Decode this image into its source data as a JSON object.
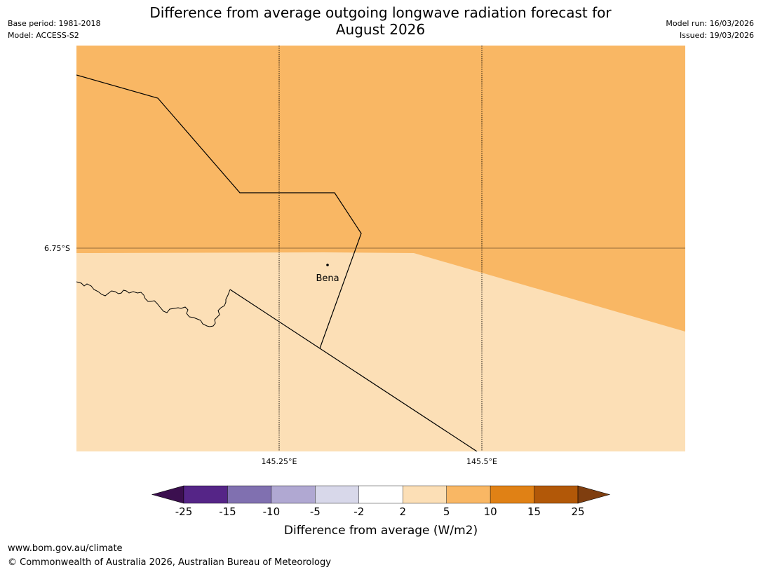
{
  "header": {
    "base_period": "Base period: 1981-2018",
    "model": "Model: ACCESS-S2",
    "model_run": "Model run: 16/03/2026",
    "issued": "Issued: 19/03/2026",
    "title_line1": "Difference from average outgoing longwave radiation forecast for",
    "title_line2": "August 2026"
  },
  "map": {
    "lat_label": "6.75°S",
    "lon_labels": [
      "145.25°E",
      "145.5°E"
    ],
    "place_name": "Bena",
    "fill_colors": {
      "upper": "#f9b764",
      "lower": "#fcdfb6"
    },
    "place_icon": "dot-marker"
  },
  "colorbar": {
    "tick_labels": [
      "-25",
      "-15",
      "-10",
      "-5",
      "-2",
      "2",
      "5",
      "10",
      "15",
      "25"
    ],
    "label": "Difference from average (W/m2)",
    "colors": {
      "below": "#3b0f4f",
      "bins": [
        "#552587",
        "#8070b0",
        "#b0a8d2",
        "#d8d8ea",
        "#ffffff",
        "#fcdfb6",
        "#f9b764",
        "#e08115",
        "#b25808"
      ],
      "above": "#7f3e0f"
    }
  },
  "footer": {
    "url": "www.bom.gov.au/climate",
    "copyright": "© Commonwealth of Australia 2026, Australian Bureau of Meteorology"
  }
}
